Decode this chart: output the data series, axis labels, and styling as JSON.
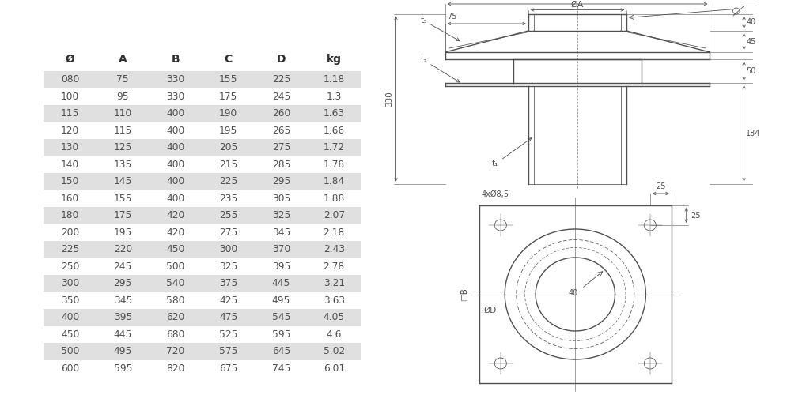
{
  "table_headers": [
    "Ø",
    "A",
    "B",
    "C",
    "D",
    "kg"
  ],
  "table_rows": [
    [
      "080",
      "75",
      "330",
      "155",
      "225",
      "1.18"
    ],
    [
      "100",
      "95",
      "330",
      "175",
      "245",
      "1.3"
    ],
    [
      "115",
      "110",
      "400",
      "190",
      "260",
      "1.63"
    ],
    [
      "120",
      "115",
      "400",
      "195",
      "265",
      "1.66"
    ],
    [
      "130",
      "125",
      "400",
      "205",
      "275",
      "1.72"
    ],
    [
      "140",
      "135",
      "400",
      "215",
      "285",
      "1.78"
    ],
    [
      "150",
      "145",
      "400",
      "225",
      "295",
      "1.84"
    ],
    [
      "160",
      "155",
      "400",
      "235",
      "305",
      "1.88"
    ],
    [
      "180",
      "175",
      "420",
      "255",
      "325",
      "2.07"
    ],
    [
      "200",
      "195",
      "420",
      "275",
      "345",
      "2.18"
    ],
    [
      "225",
      "220",
      "450",
      "300",
      "370",
      "2.43"
    ],
    [
      "250",
      "245",
      "500",
      "325",
      "395",
      "2.78"
    ],
    [
      "300",
      "295",
      "540",
      "375",
      "445",
      "3.21"
    ],
    [
      "350",
      "345",
      "580",
      "425",
      "495",
      "3.63"
    ],
    [
      "400",
      "395",
      "620",
      "475",
      "545",
      "4.05"
    ],
    [
      "450",
      "445",
      "680",
      "525",
      "595",
      "4.6"
    ],
    [
      "500",
      "495",
      "720",
      "575",
      "645",
      "5.02"
    ],
    [
      "600",
      "595",
      "820",
      "675",
      "745",
      "6.01"
    ]
  ],
  "shaded_rows": [
    0,
    2,
    4,
    6,
    8,
    10,
    12,
    14,
    16
  ],
  "bg_color": "#ffffff",
  "row_bg_shaded": "#e0e0e0",
  "text_color": "#505050",
  "header_color": "#303030",
  "line_color": "#505050"
}
